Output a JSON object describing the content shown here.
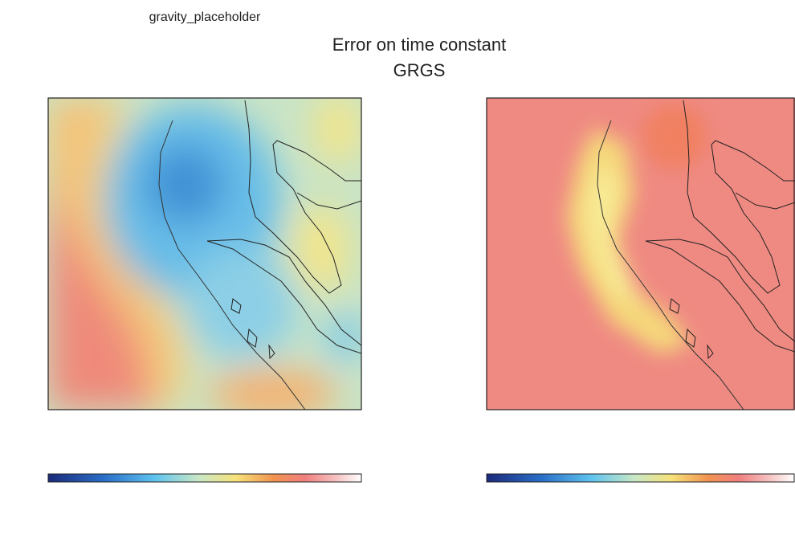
{
  "figure": {
    "title": "Error on time constant",
    "subtitle": "GRGS",
    "panels": [
      {
        "title": "gravity_placeholder"
      }
    ]
  }
}
